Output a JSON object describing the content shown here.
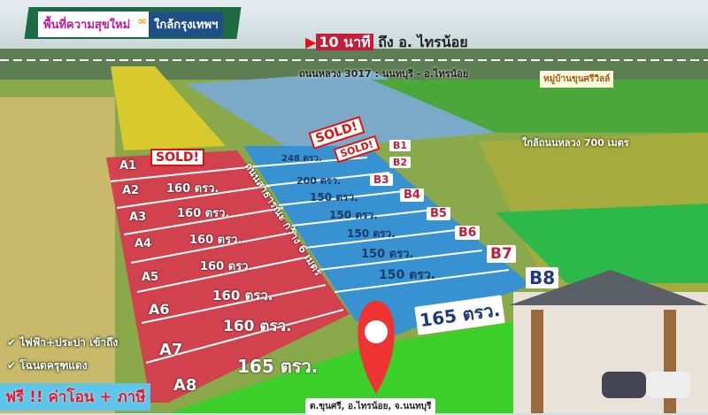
{
  "banner": {
    "left": "พื้นที่ความสุขใหม่",
    "right": "ใกล้กรุงเทพฯ"
  },
  "travel": {
    "time": "10 นาที",
    "dest": "ถึง อ. ไทรน้อย"
  },
  "road_main": "ถนนหลวง 3017 : นนทบุรี - อ.ไทรน้อย",
  "village": "หมู่บ้านขุนศรีวิลล์",
  "near_road": "ใกล้ถนนหลวง 700 เมตร",
  "public_road": "ถนนสาธารณะ กว้าง 6 เมตร",
  "sold_label": "SOLD!",
  "lots_a": [
    {
      "id": "A1",
      "size": "SOLD!"
    },
    {
      "id": "A2",
      "size": "160 ตรว."
    },
    {
      "id": "A3",
      "size": "160 ตรว."
    },
    {
      "id": "A4",
      "size": "160 ตรว."
    },
    {
      "id": "A5",
      "size": "160 ตรว."
    },
    {
      "id": "A6",
      "size": "160 ตรว."
    },
    {
      "id": "A7",
      "size": "160 ตรว."
    },
    {
      "id": "A8",
      "size": "165 ตรว."
    }
  ],
  "lots_b": [
    {
      "id": "B1",
      "size": "248 ตรว."
    },
    {
      "id": "B2",
      "size": "200 ตรว."
    },
    {
      "id": "B3",
      "size": "150 ตรว."
    },
    {
      "id": "B4",
      "size": "150 ตรว."
    },
    {
      "id": "B5",
      "size": "150 ตรว."
    },
    {
      "id": "B6",
      "size": "150 ตรว."
    },
    {
      "id": "B7",
      "size": "150 ตรว."
    },
    {
      "id": "B8",
      "size": "165 ตรว."
    }
  ],
  "features": [
    "ไฟฟ้า+ประปา เข้าถึง",
    "โฉนดครุฑแดง"
  ],
  "promo": {
    "free": "ฟรี !!",
    "text": "ค่าโอน + ภาษี"
  },
  "location": "ต.ขุนศรี, อ.ไทรน้อย, จ.นนทบุรี",
  "colors": {
    "lots_a": "#d9364f",
    "lots_b": "#2f8fe0",
    "grass": "#3ccf2a"
  }
}
